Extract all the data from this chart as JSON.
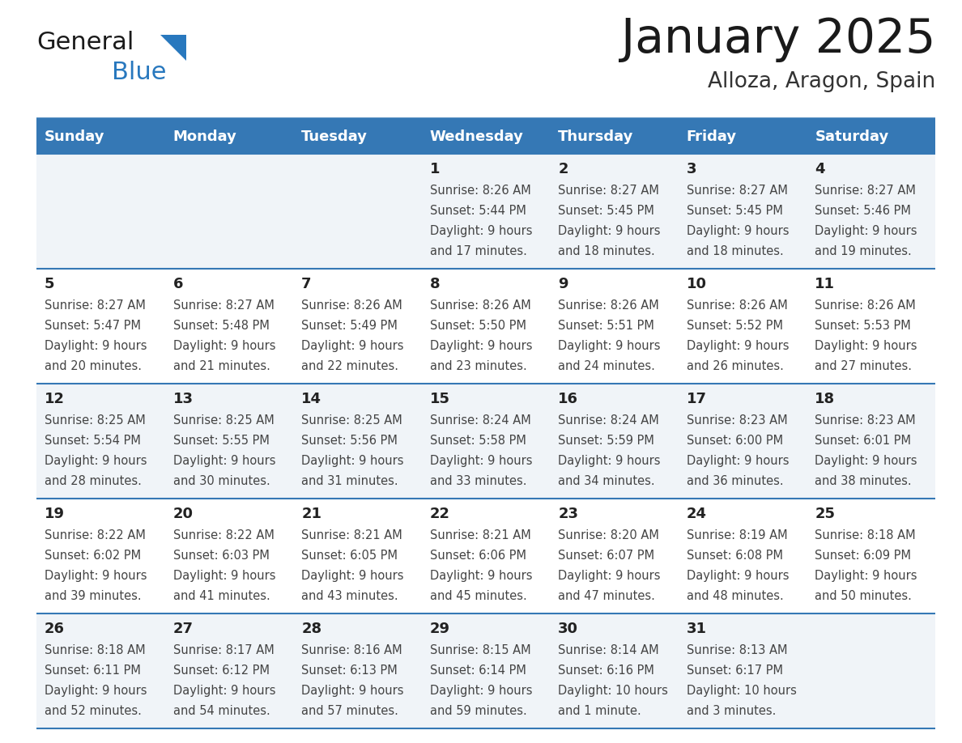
{
  "title": "January 2025",
  "subtitle": "Alloza, Aragon, Spain",
  "days_of_week": [
    "Sunday",
    "Monday",
    "Tuesday",
    "Wednesday",
    "Thursday",
    "Friday",
    "Saturday"
  ],
  "header_bg": "#3578b5",
  "header_text": "#ffffff",
  "row_bg_odd": "#f0f4f8",
  "row_bg_even": "#ffffff",
  "day_number_color": "#222222",
  "cell_text_color": "#444444",
  "divider_color": "#3578b5",
  "title_color": "#1a1a1a",
  "subtitle_color": "#333333",
  "logo_general_color": "#1a1a1a",
  "logo_blue_color": "#2878be",
  "logo_triangle_color": "#2878be",
  "calendar": [
    [
      {
        "day": null,
        "sunrise": null,
        "sunset": null,
        "daylight": null
      },
      {
        "day": null,
        "sunrise": null,
        "sunset": null,
        "daylight": null
      },
      {
        "day": null,
        "sunrise": null,
        "sunset": null,
        "daylight": null
      },
      {
        "day": 1,
        "sunrise": "8:26 AM",
        "sunset": "5:44 PM",
        "daylight": "9 hours\nand 17 minutes."
      },
      {
        "day": 2,
        "sunrise": "8:27 AM",
        "sunset": "5:45 PM",
        "daylight": "9 hours\nand 18 minutes."
      },
      {
        "day": 3,
        "sunrise": "8:27 AM",
        "sunset": "5:45 PM",
        "daylight": "9 hours\nand 18 minutes."
      },
      {
        "day": 4,
        "sunrise": "8:27 AM",
        "sunset": "5:46 PM",
        "daylight": "9 hours\nand 19 minutes."
      }
    ],
    [
      {
        "day": 5,
        "sunrise": "8:27 AM",
        "sunset": "5:47 PM",
        "daylight": "9 hours\nand 20 minutes."
      },
      {
        "day": 6,
        "sunrise": "8:27 AM",
        "sunset": "5:48 PM",
        "daylight": "9 hours\nand 21 minutes."
      },
      {
        "day": 7,
        "sunrise": "8:26 AM",
        "sunset": "5:49 PM",
        "daylight": "9 hours\nand 22 minutes."
      },
      {
        "day": 8,
        "sunrise": "8:26 AM",
        "sunset": "5:50 PM",
        "daylight": "9 hours\nand 23 minutes."
      },
      {
        "day": 9,
        "sunrise": "8:26 AM",
        "sunset": "5:51 PM",
        "daylight": "9 hours\nand 24 minutes."
      },
      {
        "day": 10,
        "sunrise": "8:26 AM",
        "sunset": "5:52 PM",
        "daylight": "9 hours\nand 26 minutes."
      },
      {
        "day": 11,
        "sunrise": "8:26 AM",
        "sunset": "5:53 PM",
        "daylight": "9 hours\nand 27 minutes."
      }
    ],
    [
      {
        "day": 12,
        "sunrise": "8:25 AM",
        "sunset": "5:54 PM",
        "daylight": "9 hours\nand 28 minutes."
      },
      {
        "day": 13,
        "sunrise": "8:25 AM",
        "sunset": "5:55 PM",
        "daylight": "9 hours\nand 30 minutes."
      },
      {
        "day": 14,
        "sunrise": "8:25 AM",
        "sunset": "5:56 PM",
        "daylight": "9 hours\nand 31 minutes."
      },
      {
        "day": 15,
        "sunrise": "8:24 AM",
        "sunset": "5:58 PM",
        "daylight": "9 hours\nand 33 minutes."
      },
      {
        "day": 16,
        "sunrise": "8:24 AM",
        "sunset": "5:59 PM",
        "daylight": "9 hours\nand 34 minutes."
      },
      {
        "day": 17,
        "sunrise": "8:23 AM",
        "sunset": "6:00 PM",
        "daylight": "9 hours\nand 36 minutes."
      },
      {
        "day": 18,
        "sunrise": "8:23 AM",
        "sunset": "6:01 PM",
        "daylight": "9 hours\nand 38 minutes."
      }
    ],
    [
      {
        "day": 19,
        "sunrise": "8:22 AM",
        "sunset": "6:02 PM",
        "daylight": "9 hours\nand 39 minutes."
      },
      {
        "day": 20,
        "sunrise": "8:22 AM",
        "sunset": "6:03 PM",
        "daylight": "9 hours\nand 41 minutes."
      },
      {
        "day": 21,
        "sunrise": "8:21 AM",
        "sunset": "6:05 PM",
        "daylight": "9 hours\nand 43 minutes."
      },
      {
        "day": 22,
        "sunrise": "8:21 AM",
        "sunset": "6:06 PM",
        "daylight": "9 hours\nand 45 minutes."
      },
      {
        "day": 23,
        "sunrise": "8:20 AM",
        "sunset": "6:07 PM",
        "daylight": "9 hours\nand 47 minutes."
      },
      {
        "day": 24,
        "sunrise": "8:19 AM",
        "sunset": "6:08 PM",
        "daylight": "9 hours\nand 48 minutes."
      },
      {
        "day": 25,
        "sunrise": "8:18 AM",
        "sunset": "6:09 PM",
        "daylight": "9 hours\nand 50 minutes."
      }
    ],
    [
      {
        "day": 26,
        "sunrise": "8:18 AM",
        "sunset": "6:11 PM",
        "daylight": "9 hours\nand 52 minutes."
      },
      {
        "day": 27,
        "sunrise": "8:17 AM",
        "sunset": "6:12 PM",
        "daylight": "9 hours\nand 54 minutes."
      },
      {
        "day": 28,
        "sunrise": "8:16 AM",
        "sunset": "6:13 PM",
        "daylight": "9 hours\nand 57 minutes."
      },
      {
        "day": 29,
        "sunrise": "8:15 AM",
        "sunset": "6:14 PM",
        "daylight": "9 hours\nand 59 minutes."
      },
      {
        "day": 30,
        "sunrise": "8:14 AM",
        "sunset": "6:16 PM",
        "daylight": "10 hours\nand 1 minute."
      },
      {
        "day": 31,
        "sunrise": "8:13 AM",
        "sunset": "6:17 PM",
        "daylight": "10 hours\nand 3 minutes."
      },
      {
        "day": null,
        "sunrise": null,
        "sunset": null,
        "daylight": null
      }
    ]
  ],
  "title_font_size": 42,
  "subtitle_font_size": 19,
  "header_font_size": 13,
  "day_num_font_size": 13,
  "cell_text_font_size": 10.5,
  "logo_font_size": 22
}
